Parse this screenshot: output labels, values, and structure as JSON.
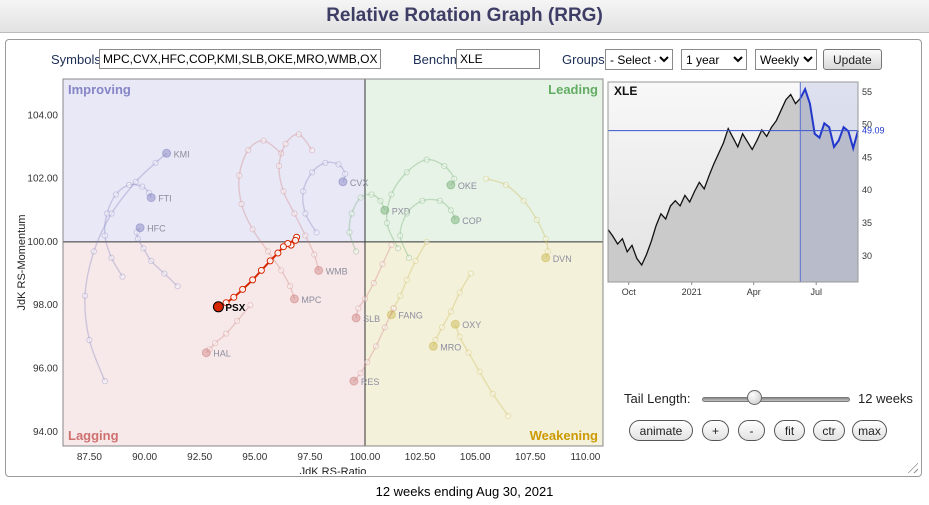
{
  "header": {
    "title": "Relative Rotation Graph (RRG)"
  },
  "toolbar": {
    "symbols_label": "Symbols:",
    "symbols_value": "MPC,CVX,HFC,COP,KMI,SLB,OKE,MRO,WMB,OXY",
    "benchmark_label": "Benchmark:",
    "benchmark_value": "XLE",
    "groups_label": "Groups:",
    "groups_selected": "- Select -",
    "period_selected": "1 year",
    "frequency_selected": "Weekly",
    "update_label": "Update"
  },
  "controls": {
    "tail_length_label": "Tail Length:",
    "tail_length_value": "12 weeks",
    "buttons": [
      "animate",
      "+",
      "-",
      "fit",
      "ctr",
      "max"
    ]
  },
  "footer": {
    "caption": "12 weeks ending Aug 30, 2021"
  },
  "chart_data": [
    {
      "type": "scatter",
      "name": "rrg",
      "xlabel": "JdK RS-Ratio",
      "ylabel": "JdK RS-Momentum",
      "xlim": [
        86.3,
        110.8
      ],
      "ylim": [
        93.55,
        105.15
      ],
      "xticks": [
        87.5,
        90,
        92.5,
        95,
        97.5,
        100,
        102.5,
        105,
        107.5,
        110
      ],
      "yticks": [
        94,
        96,
        98,
        100,
        102,
        104
      ],
      "center": [
        100,
        100
      ],
      "quadrant_labels": {
        "top_left": "Improving",
        "top_right": "Leading",
        "bottom_left": "Lagging",
        "bottom_right": "Weakening"
      },
      "quadrant_label_colors": {
        "top_left": "#8585c8",
        "top_right": "#63ad63",
        "bottom_left": "#cf7070",
        "bottom_right": "#cc9900"
      },
      "quadrant_colors": {
        "top_left": "#e8e8f6",
        "top_right": "#e7f3e7",
        "bottom_left": "#f7e9e9",
        "bottom_right": "#f4f1db"
      },
      "series": [
        {
          "symbol": "FTI",
          "color": "#8080c0",
          "highlight": false,
          "points": [
            [
              89.0,
              98.9
            ],
            [
              88.5,
              99.5
            ],
            [
              88.2,
              100.2
            ],
            [
              88.3,
              100.9
            ],
            [
              88.7,
              101.5
            ],
            [
              89.3,
              101.8
            ],
            [
              89.9,
              101.75
            ],
            [
              90.2,
              101.55
            ],
            [
              90.3,
              101.4
            ]
          ]
        },
        {
          "symbol": "HFC",
          "color": "#8080c0",
          "highlight": false,
          "points": [
            [
              91.5,
              98.6
            ],
            [
              90.9,
              99.0
            ],
            [
              90.3,
              99.4
            ],
            [
              89.95,
              99.8
            ],
            [
              89.7,
              100.1
            ],
            [
              89.65,
              100.3
            ],
            [
              89.8,
              100.45
            ]
          ]
        },
        {
          "symbol": "KMI",
          "color": "#8080c0",
          "highlight": false,
          "points": [
            [
              88.2,
              95.6
            ],
            [
              87.5,
              96.9
            ],
            [
              87.3,
              98.3
            ],
            [
              87.7,
              99.7
            ],
            [
              88.5,
              100.9
            ],
            [
              89.6,
              101.9
            ],
            [
              90.5,
              102.5
            ],
            [
              91.0,
              102.8
            ]
          ]
        },
        {
          "symbol": "CVX",
          "color": "#8080c0",
          "highlight": false,
          "points": [
            [
              97.8,
              100.3
            ],
            [
              97.3,
              100.9
            ],
            [
              97.2,
              101.6
            ],
            [
              97.6,
              102.2
            ],
            [
              98.2,
              102.5
            ],
            [
              98.8,
              102.45
            ],
            [
              99.1,
              102.15
            ],
            [
              99.0,
              101.9
            ]
          ]
        },
        {
          "symbol": "MPC",
          "color": "#cf8080",
          "highlight": false,
          "points": [
            [
              96.2,
              102.8
            ],
            [
              95.4,
              103.2
            ],
            [
              94.7,
              102.9
            ],
            [
              94.3,
              102.1
            ],
            [
              94.4,
              101.2
            ],
            [
              94.9,
              100.4
            ],
            [
              95.6,
              99.7
            ],
            [
              96.2,
              99.1
            ],
            [
              96.6,
              98.6
            ],
            [
              96.8,
              98.2
            ]
          ]
        },
        {
          "symbol": "WMB",
          "color": "#cf8080",
          "highlight": false,
          "points": [
            [
              97.6,
              102.9
            ],
            [
              97.0,
              103.4
            ],
            [
              96.4,
              103.1
            ],
            [
              96.1,
              102.4
            ],
            [
              96.3,
              101.6
            ],
            [
              96.8,
              100.9
            ],
            [
              97.3,
              100.2
            ],
            [
              97.7,
              99.6
            ],
            [
              97.9,
              99.1
            ]
          ]
        },
        {
          "symbol": "PXD",
          "color": "#70ad70",
          "highlight": false,
          "points": [
            [
              99.6,
              99.7
            ],
            [
              99.3,
              100.3
            ],
            [
              99.4,
              100.9
            ],
            [
              99.8,
              101.4
            ],
            [
              100.3,
              101.5
            ],
            [
              100.7,
              101.3
            ],
            [
              100.9,
              101.0
            ]
          ]
        },
        {
          "symbol": "OKE",
          "color": "#70ad70",
          "highlight": false,
          "points": [
            [
              101.5,
              99.8
            ],
            [
              101.0,
              100.6
            ],
            [
              101.2,
              101.5
            ],
            [
              101.9,
              102.2
            ],
            [
              102.8,
              102.6
            ],
            [
              103.6,
              102.4
            ],
            [
              104.05,
              102.0
            ],
            [
              103.9,
              101.8
            ]
          ]
        },
        {
          "symbol": "COP",
          "color": "#70ad70",
          "highlight": false,
          "points": [
            [
              102.0,
              99.5
            ],
            [
              101.6,
              100.2
            ],
            [
              101.9,
              100.9
            ],
            [
              102.6,
              101.3
            ],
            [
              103.4,
              101.3
            ],
            [
              103.9,
              101.0
            ],
            [
              104.1,
              100.7
            ]
          ]
        },
        {
          "symbol": "DVN",
          "color": "#c9b84c",
          "highlight": false,
          "points": [
            [
              105.5,
              102.0
            ],
            [
              106.4,
              101.8
            ],
            [
              107.2,
              101.3
            ],
            [
              107.8,
              100.7
            ],
            [
              108.2,
              100.1
            ],
            [
              108.3,
              99.7
            ],
            [
              108.2,
              99.5
            ]
          ]
        },
        {
          "symbol": "SLB",
          "color": "#cf8080",
          "highlight": false,
          "points": [
            [
              101.2,
              99.9
            ],
            [
              100.8,
              99.3
            ],
            [
              100.4,
              98.7
            ],
            [
              100.0,
              98.2
            ],
            [
              99.7,
              97.9
            ],
            [
              99.6,
              97.6
            ]
          ]
        },
        {
          "symbol": "FANG",
          "color": "#c9b84c",
          "highlight": false,
          "points": [
            [
              102.8,
              100.0
            ],
            [
              102.3,
              99.4
            ],
            [
              101.9,
              98.8
            ],
            [
              101.6,
              98.3
            ],
            [
              101.3,
              97.9
            ],
            [
              101.2,
              97.7
            ]
          ]
        },
        {
          "symbol": "MRO",
          "color": "#c9b84c",
          "highlight": false,
          "points": [
            [
              104.8,
              99.0
            ],
            [
              104.3,
              98.4
            ],
            [
              103.9,
              97.8
            ],
            [
              103.5,
              97.3
            ],
            [
              103.2,
              96.9
            ],
            [
              103.1,
              96.7
            ]
          ]
        },
        {
          "symbol": "RES",
          "color": "#cf8080",
          "highlight": false,
          "points": [
            [
              101.3,
              97.9
            ],
            [
              100.9,
              97.3
            ],
            [
              100.5,
              96.7
            ],
            [
              100.1,
              96.2
            ],
            [
              99.8,
              95.85
            ],
            [
              99.5,
              95.6
            ]
          ]
        },
        {
          "symbol": "HAL",
          "color": "#cf8080",
          "highlight": false,
          "points": [
            [
              94.8,
              98.0
            ],
            [
              94.2,
              97.5
            ],
            [
              93.7,
              97.1
            ],
            [
              93.2,
              96.8
            ],
            [
              92.95,
              96.6
            ],
            [
              92.8,
              96.5
            ]
          ]
        },
        {
          "symbol": "OXY",
          "color": "#c9b84c",
          "highlight": false,
          "points": [
            [
              106.5,
              94.5
            ],
            [
              105.8,
              95.2
            ],
            [
              105.2,
              95.9
            ],
            [
              104.7,
              96.5
            ],
            [
              104.3,
              97.0
            ],
            [
              104.1,
              97.4
            ]
          ]
        },
        {
          "symbol": "PSX",
          "color": "#d62600",
          "highlight": true,
          "points": [
            [
              96.9,
              100.15
            ],
            [
              96.65,
              99.9
            ],
            [
              96.85,
              100.05
            ],
            [
              96.5,
              99.95
            ],
            [
              96.3,
              99.85
            ],
            [
              96.05,
              99.65
            ],
            [
              95.7,
              99.4
            ],
            [
              95.3,
              99.1
            ],
            [
              94.9,
              98.8
            ],
            [
              94.45,
              98.5
            ],
            [
              94.05,
              98.25
            ],
            [
              93.7,
              98.08
            ],
            [
              93.35,
              97.95
            ]
          ]
        }
      ]
    },
    {
      "type": "line",
      "name": "benchmark",
      "title": "XLE",
      "ylim": [
        26,
        56.5
      ],
      "yticks": [
        30,
        35,
        40,
        45,
        50,
        55
      ],
      "xticks": [
        "Oct",
        "2021",
        "Apr",
        "Jul"
      ],
      "xtick_positions": [
        4.3,
        17.4,
        30.3,
        43.3
      ],
      "last_price": 49.09,
      "highlight_start_index": 40,
      "values": [
        34.0,
        33.0,
        31.8,
        32.6,
        30.6,
        31.6,
        29.6,
        28.6,
        30.2,
        32.2,
        34.6,
        36.4,
        35.6,
        37.6,
        38.4,
        37.6,
        39.2,
        38.2,
        39.8,
        41.2,
        40.2,
        42.2,
        44.0,
        45.6,
        47.2,
        49.4,
        48.0,
        46.6,
        48.6,
        47.4,
        46.2,
        47.6,
        49.2,
        48.2,
        49.6,
        50.6,
        52.2,
        53.8,
        54.6,
        53.2,
        54.0,
        55.4,
        53.2,
        48.6,
        48.0,
        50.2,
        49.6,
        46.6,
        47.6,
        49.6,
        49.0,
        46.4,
        49.09
      ]
    }
  ]
}
